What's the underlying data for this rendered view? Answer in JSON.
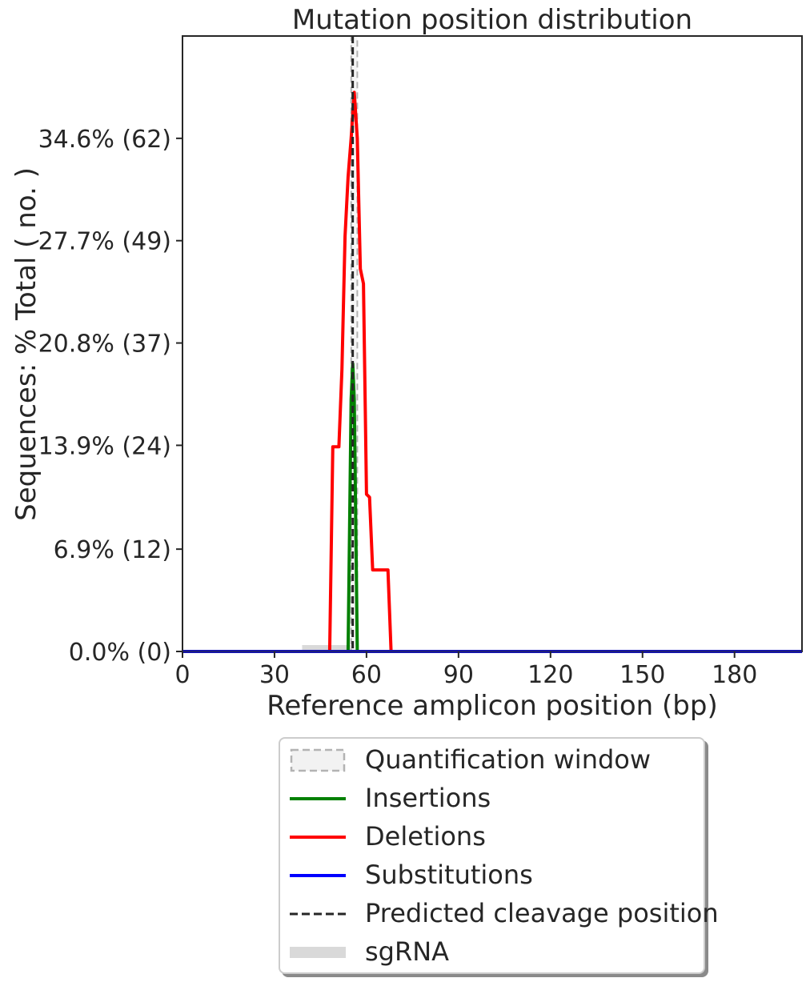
{
  "chart_data": {
    "type": "line",
    "title": "Mutation position distribution",
    "xlabel": "Reference amplicon position (bp)",
    "ylabel": "Sequences: % Total ( no. )",
    "xlim": [
      0,
      202
    ],
    "ylim": [
      0,
      41.5
    ],
    "xticks": [
      0,
      30,
      60,
      90,
      120,
      150,
      180
    ],
    "xtick_labels": [
      "0",
      "30",
      "60",
      "90",
      "120",
      "150",
      "180"
    ],
    "yticks": [
      0,
      6.9,
      13.9,
      20.8,
      27.7,
      34.6
    ],
    "ytick_labels": [
      "0.0% (0)",
      "6.9% (12)",
      "13.9% (24)",
      "20.8% (37)",
      "27.7% (49)",
      "34.6% (62)"
    ],
    "grid": false,
    "legend_position": "below",
    "quantification_window": [
      55,
      57
    ],
    "predicted_cleavage_position": 55.5,
    "sgrna": [
      39,
      56
    ],
    "series": [
      {
        "name": "Insertions",
        "color": "#008000",
        "x": [
          0,
          54,
          55,
          55.5,
          56,
          57,
          202
        ],
        "y": [
          0,
          0,
          17.0,
          19.4,
          17.0,
          0,
          0
        ]
      },
      {
        "name": "Deletions",
        "color": "#ff0000",
        "x": [
          0,
          48,
          49,
          51,
          52,
          53,
          54,
          55,
          56,
          57,
          58,
          59,
          60,
          61,
          62,
          67,
          68,
          202
        ],
        "y": [
          0,
          0,
          13.8,
          13.8,
          19.0,
          28.0,
          32.0,
          34.6,
          37.7,
          34.6,
          25.8,
          24.8,
          10.6,
          10.4,
          5.5,
          5.5,
          0,
          0
        ]
      },
      {
        "name": "Substitutions",
        "color": "#0000ff",
        "x": [
          0,
          202
        ],
        "y": [
          0,
          0
        ]
      }
    ]
  },
  "legend": {
    "items": [
      {
        "label": "Quantification window",
        "kind": "window"
      },
      {
        "label": "Insertions",
        "kind": "line",
        "color": "#008000"
      },
      {
        "label": "Deletions",
        "kind": "line",
        "color": "#ff0000"
      },
      {
        "label": "Substitutions",
        "kind": "line",
        "color": "#0000ff"
      },
      {
        "label": "Predicted cleavage position",
        "kind": "dashed",
        "color": "#262626"
      },
      {
        "label": "sgRNA",
        "kind": "band",
        "color": "#d9d9d9"
      }
    ]
  }
}
